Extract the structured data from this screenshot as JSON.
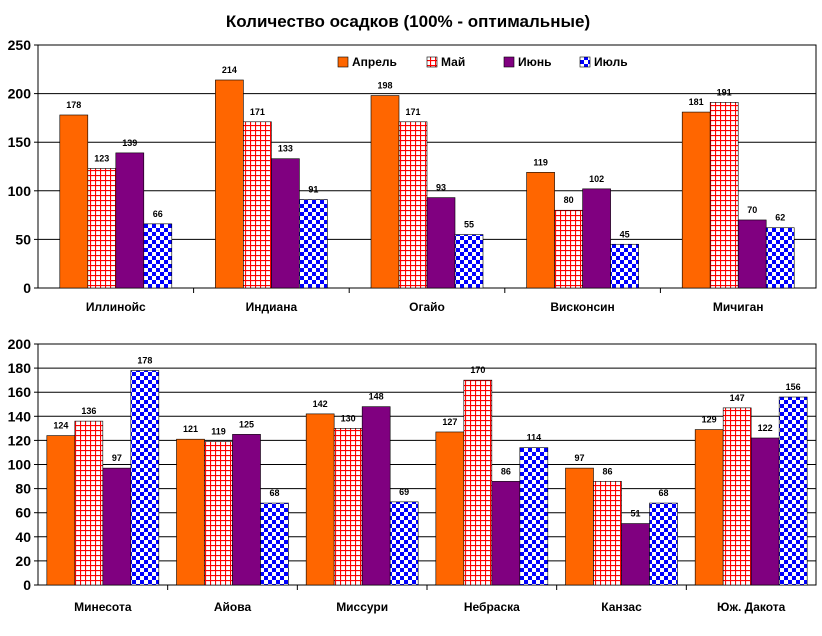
{
  "title": "Количество осадков (100% - оптимальные)",
  "legend_position": "top-right (upper panel)",
  "series_styles": [
    {
      "name": "Апрель",
      "color": "#FF6600",
      "pattern": "solid"
    },
    {
      "name": "Май",
      "color": "#FF0000",
      "pattern": "grid"
    },
    {
      "name": "Июнь",
      "color": "#800080",
      "pattern": "solid"
    },
    {
      "name": "Июль",
      "color": "#0000FF",
      "pattern": "checker"
    }
  ],
  "chart_data": [
    {
      "type": "bar",
      "title": "Количество осадков (100% - оптимальные)",
      "categories": [
        "Иллинойс",
        "Индиана",
        "Огайо",
        "Висконсин",
        "Мичиган"
      ],
      "series": [
        {
          "name": "Апрель",
          "values": [
            178,
            214,
            198,
            119,
            181
          ]
        },
        {
          "name": "Май",
          "values": [
            123,
            171,
            171,
            80,
            191
          ]
        },
        {
          "name": "Июнь",
          "values": [
            139,
            133,
            93,
            102,
            70
          ]
        },
        {
          "name": "Июль",
          "values": [
            66,
            91,
            55,
            45,
            62
          ]
        }
      ],
      "yticks": [
        "0",
        "50",
        "100",
        "150",
        "200",
        "250"
      ],
      "ylim": [
        0,
        250
      ],
      "grid": true,
      "legend": true
    },
    {
      "type": "bar",
      "categories": [
        "Минесота",
        "Айова",
        "Миссури",
        "Небраска",
        "Канзас",
        "Юж. Дакота"
      ],
      "series": [
        {
          "name": "Апрель",
          "values": [
            124,
            121,
            142,
            127,
            97,
            129
          ]
        },
        {
          "name": "Май",
          "values": [
            136,
            119,
            130,
            170,
            86,
            147
          ]
        },
        {
          "name": "Июнь",
          "values": [
            97,
            125,
            148,
            86,
            51,
            122
          ]
        },
        {
          "name": "Июль",
          "values": [
            178,
            68,
            69,
            114,
            68,
            156
          ]
        }
      ],
      "yticks": [
        "0",
        "20",
        "40",
        "60",
        "80",
        "100",
        "120",
        "140",
        "160",
        "180",
        "200"
      ],
      "ylim": [
        0,
        200
      ],
      "grid": true,
      "legend": false
    }
  ]
}
